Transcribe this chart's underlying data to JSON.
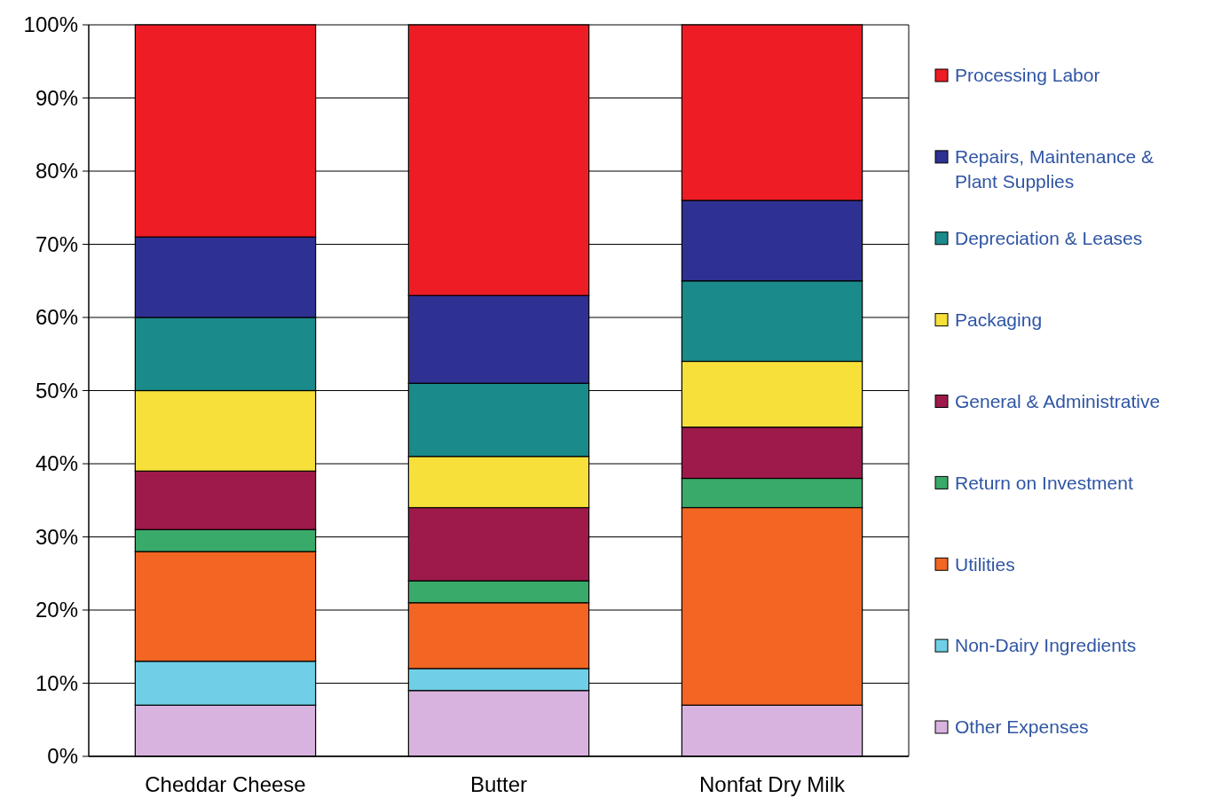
{
  "chart_data": {
    "type": "bar",
    "stacked": true,
    "categories": [
      "Cheddar Cheese",
      "Butter",
      "Nonfat Dry Milk"
    ],
    "series": [
      {
        "name": "Other Expenses",
        "color": "#d9b3e0",
        "values": [
          7,
          9,
          7
        ]
      },
      {
        "name": "Non-Dairy Ingredients",
        "color": "#6fcfe6",
        "values": [
          6,
          3,
          0
        ]
      },
      {
        "name": "Utilities",
        "color": "#f26522",
        "values": [
          15,
          9,
          27
        ]
      },
      {
        "name": "Return on Investment",
        "color": "#3aaa6a",
        "values": [
          3,
          3,
          4
        ]
      },
      {
        "name": "General & Administrative",
        "color": "#9e1a4a",
        "values": [
          8,
          10,
          7
        ]
      },
      {
        "name": "Packaging",
        "color": "#f7e03a",
        "values": [
          11,
          7,
          9
        ]
      },
      {
        "name": "Depreciation & Leases",
        "color": "#1a8a8a",
        "values": [
          10,
          10,
          11
        ]
      },
      {
        "name": "Repairs, Maintenance & Plant Supplies",
        "color": "#2e3192",
        "values": [
          11,
          12,
          11
        ]
      },
      {
        "name": "Processing Labor",
        "color": "#ee1c25",
        "values": [
          29,
          37,
          24
        ]
      }
    ],
    "ylim": [
      0,
      100
    ],
    "yticks": [
      {
        "value": 0,
        "label": "0%"
      },
      {
        "value": 10,
        "label": "10%"
      },
      {
        "value": 20,
        "label": "20%"
      },
      {
        "value": 30,
        "label": "30%"
      },
      {
        "value": 40,
        "label": "40%"
      },
      {
        "value": 50,
        "label": "50%"
      },
      {
        "value": 60,
        "label": "60%"
      },
      {
        "value": 70,
        "label": "70%"
      },
      {
        "value": 80,
        "label": "80%"
      },
      {
        "value": 90,
        "label": "90%"
      },
      {
        "value": 100,
        "label": "100%"
      }
    ],
    "grid": "y",
    "legend": "right"
  }
}
